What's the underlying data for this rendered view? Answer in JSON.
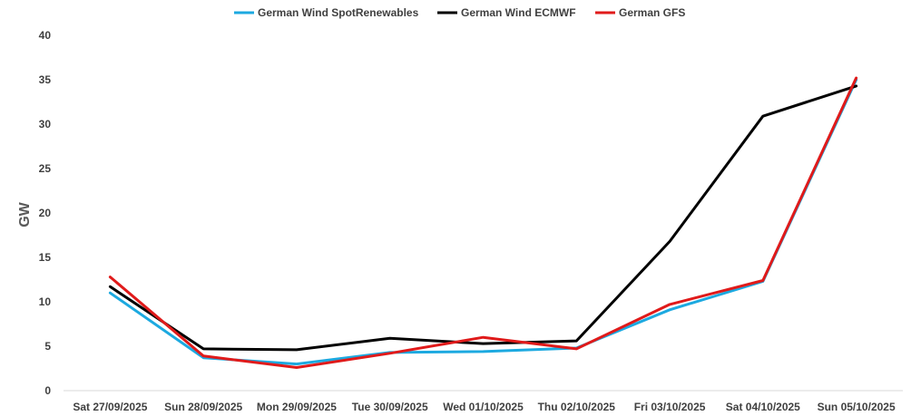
{
  "chart_data": {
    "type": "line",
    "title": "",
    "xlabel": "",
    "ylabel": "GW",
    "ylim": [
      0,
      40
    ],
    "yticks": [
      0,
      5,
      10,
      15,
      20,
      25,
      30,
      35,
      40
    ],
    "grid": false,
    "legend_position": "top",
    "categories": [
      "Sat 27/09/2025",
      "Sun 28/09/2025",
      "Mon 29/09/2025",
      "Tue 30/09/2025",
      "Wed 01/10/2025",
      "Thu 02/10/2025",
      "Fri 03/10/2025",
      "Sat 04/10/2025",
      "Sun 05/10/2025"
    ],
    "series": [
      {
        "name": "German Wind SpotRenewables",
        "color": "#1CA9E0",
        "values": [
          11.0,
          3.7,
          3.0,
          4.3,
          4.4,
          4.8,
          9.1,
          12.3,
          35.0
        ]
      },
      {
        "name": "German Wind ECMWF",
        "color": "#000000",
        "values": [
          11.7,
          4.7,
          4.6,
          5.9,
          5.3,
          5.6,
          16.8,
          30.9,
          34.3
        ]
      },
      {
        "name": "German GFS",
        "color": "#E01A1A",
        "values": [
          12.8,
          3.9,
          2.6,
          4.2,
          6.0,
          4.7,
          9.7,
          12.4,
          35.2
        ]
      }
    ]
  }
}
